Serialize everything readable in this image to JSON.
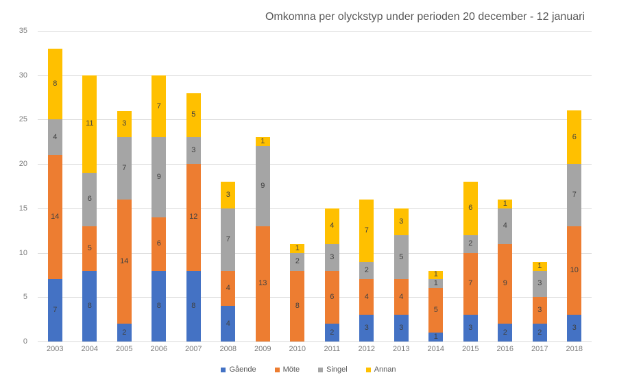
{
  "chart_data": {
    "type": "bar",
    "stacked": true,
    "title": "Omkomna per olyckstyp under perioden 20 december - 12 januari",
    "categories": [
      "2003",
      "2004",
      "2005",
      "2006",
      "2007",
      "2008",
      "2009",
      "2010",
      "2011",
      "2012",
      "2013",
      "2014",
      "2015",
      "2016",
      "2017",
      "2018"
    ],
    "series": [
      {
        "name": "Gående",
        "color": "#4472C4",
        "values": [
          7,
          8,
          2,
          8,
          8,
          4,
          0,
          0,
          2,
          3,
          3,
          1,
          3,
          2,
          2,
          3
        ]
      },
      {
        "name": "Möte",
        "color": "#ED7D31",
        "values": [
          14,
          5,
          14,
          6,
          12,
          4,
          13,
          8,
          6,
          4,
          4,
          5,
          7,
          9,
          3,
          10
        ]
      },
      {
        "name": "Singel",
        "color": "#A5A5A5",
        "values": [
          4,
          6,
          7,
          9,
          3,
          7,
          9,
          2,
          3,
          2,
          5,
          1,
          2,
          4,
          3,
          7
        ]
      },
      {
        "name": "Annan",
        "color": "#FFC000",
        "values": [
          8,
          11,
          3,
          7,
          5,
          3,
          1,
          1,
          4,
          7,
          3,
          1,
          6,
          1,
          1,
          6
        ]
      }
    ],
    "totals": [
      33,
      30,
      26,
      30,
      28,
      18,
      23,
      11,
      15,
      16,
      15,
      8,
      18,
      16,
      9,
      26
    ],
    "ylim": [
      0,
      35
    ],
    "y_ticks": [
      0,
      5,
      10,
      15,
      20,
      25,
      30,
      35
    ],
    "grid": "horizontal",
    "gridline_color": "#D9D9D9",
    "data_labels": true,
    "data_label_color": "#404040",
    "axis_label_color": "#7A7A7A",
    "title_color": "#595959",
    "legend_position": "bottom"
  }
}
